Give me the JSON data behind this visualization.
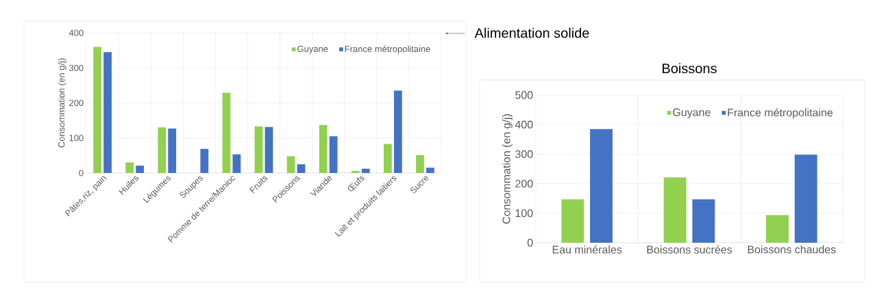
{
  "chart_data": [
    {
      "type": "bar",
      "annotations": [
        "Alimentation solide"
      ],
      "ylabel": "Consommation (en g/j)",
      "categories": [
        "Pâtes,riz, pain",
        "Huiles",
        "Légumes",
        "Soupes",
        "Pomme de terre/Manioc",
        "Fruits",
        "Poissons",
        "Viande",
        "Œufs",
        "Lait et produits laitiers",
        "Sucre"
      ],
      "series": [
        {
          "name": "Guyane",
          "color": "#92d050",
          "values": [
            360,
            30,
            130,
            null,
            229,
            133,
            48,
            137,
            6,
            83,
            51
          ]
        },
        {
          "name": "France métropolitaine",
          "color": "#4472c4",
          "values": [
            345,
            21,
            127,
            69,
            53,
            131,
            25,
            105,
            12,
            235,
            15
          ]
        }
      ],
      "ylim": [
        0,
        400
      ],
      "yticks": [
        0,
        100,
        200,
        300,
        400
      ],
      "grid": true,
      "legend": "top right"
    },
    {
      "type": "bar",
      "title": "Boissons",
      "ylabel": "Consommation (en g/j)",
      "categories": [
        "Eau minérales",
        "Boissons sucrées",
        "Boissons chaudes"
      ],
      "series": [
        {
          "name": "Guyane",
          "color": "#92d050",
          "values": [
            147,
            221,
            94
          ]
        },
        {
          "name": "France métropolitaine",
          "color": "#4472c4",
          "values": [
            385,
            147,
            298
          ]
        }
      ],
      "ylim": [
        0,
        500
      ],
      "yticks": [
        0,
        100,
        200,
        300,
        400,
        500
      ],
      "grid": true,
      "legend": "top right"
    }
  ]
}
